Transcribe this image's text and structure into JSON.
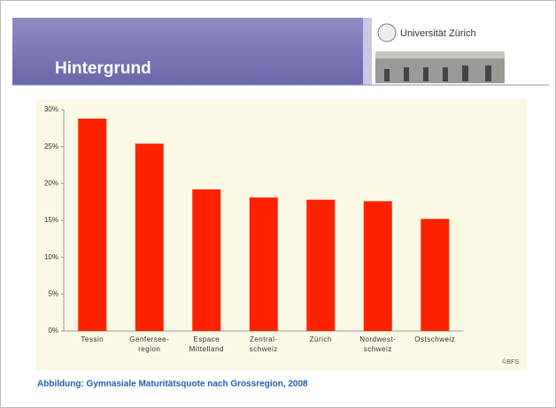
{
  "header": {
    "title": "Hintergrund",
    "logo_text": "Universität Zürich"
  },
  "chart_data": {
    "type": "bar",
    "categories": [
      "Tessin",
      "Genfersee-\nregion",
      "Espace\nMittelland",
      "Zentral-\nschweiz",
      "Zürich",
      "Nordwest-\nschweiz",
      "Ostschweiz"
    ],
    "values": [
      28.8,
      25.4,
      19.2,
      18.1,
      17.8,
      17.6,
      15.2
    ],
    "color": "#ff2200",
    "ylim": [
      0,
      30
    ],
    "yticks": [
      {
        "value": 0,
        "label": "0%"
      },
      {
        "value": 5,
        "label": "5%"
      },
      {
        "value": 10,
        "label": "10%"
      },
      {
        "value": 15,
        "label": "15%"
      },
      {
        "value": 20,
        "label": "20%"
      },
      {
        "value": 25,
        "label": "25%"
      },
      {
        "value": 30,
        "label": "30%"
      }
    ],
    "grid": false,
    "source": "©BFS"
  },
  "caption": "Abbildung:   Gymnasiale Maturitätsquote nach Grossregion, 2008"
}
